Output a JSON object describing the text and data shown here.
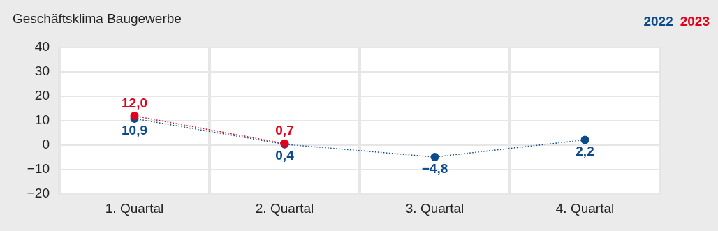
{
  "chart_data": {
    "type": "line",
    "title": "Geschäftsklima Baugewerbe",
    "categories": [
      "1. Quartal",
      "2. Quartal",
      "3. Quartal",
      "4. Quartal"
    ],
    "series": [
      {
        "name": "2022",
        "color": "#0b4a8b",
        "values": [
          10.9,
          0.4,
          -4.8,
          2.2
        ],
        "value_labels": [
          "10,9",
          "0,4",
          "−4,8",
          "2,2"
        ]
      },
      {
        "name": "2023",
        "color": "#e2001a",
        "values": [
          12.0,
          0.7,
          null,
          null
        ],
        "value_labels": [
          "12,0",
          "0,7",
          null,
          null
        ]
      }
    ],
    "ylim": [
      -20,
      40
    ],
    "yticks": [
      -20,
      -10,
      0,
      10,
      20,
      30,
      40
    ],
    "grid": true,
    "legend": "top right",
    "marker": "circle",
    "line_style": "dotted"
  }
}
